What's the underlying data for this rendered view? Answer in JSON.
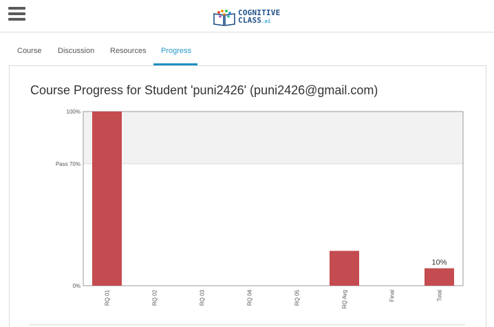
{
  "header": {
    "logo_text_line1": "COGNITIVE",
    "logo_text_line2": "CLASS",
    "logo_text_suffix": ".ai"
  },
  "tabs": [
    {
      "label": "Course",
      "active": false
    },
    {
      "label": "Discussion",
      "active": false
    },
    {
      "label": "Resources",
      "active": false
    },
    {
      "label": "Progress",
      "active": true
    }
  ],
  "page": {
    "title": "Course Progress for Student 'puni2426' (puni2426@gmail.com)"
  },
  "colors": {
    "accent": "#1e8fc4",
    "bar": "#c44b4f",
    "logo": "#1d4f86"
  },
  "chart_data": {
    "type": "bar",
    "categories": [
      "RQ 01",
      "RQ 02",
      "RQ 03",
      "RQ 04",
      "RQ 05",
      "RQ Avg",
      "Final",
      "Total"
    ],
    "values": [
      100,
      0,
      0,
      0,
      0,
      20,
      0,
      10
    ],
    "ytick_labels": [
      "0%",
      "Pass 70%",
      "100%"
    ],
    "ytick_values": [
      0,
      70,
      100
    ],
    "ylim": [
      0,
      100
    ],
    "pass_threshold": 70,
    "data_labels": [
      {
        "category": "Total",
        "text": "10%"
      }
    ]
  }
}
